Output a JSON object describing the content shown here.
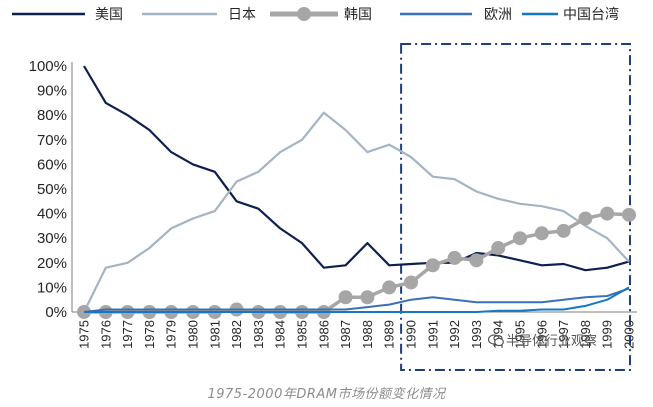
{
  "caption": "1975-2000年DRAM市场份额变化情况",
  "watermark": "半导体行业观察",
  "colors": {
    "usa": "#0d2050",
    "japan": "#a3b4c4",
    "korea": "#a6a6a6",
    "europe": "#3b6fb6",
    "taiwan": "#1677c4",
    "highlight_box": "#1f3f7a",
    "axis": "#7f7f7f",
    "text": "#262626"
  },
  "chart_data": {
    "type": "line",
    "x": [
      "1975",
      "1976",
      "1977",
      "1978",
      "1979",
      "1980",
      "1981",
      "1982",
      "1983",
      "1984",
      "1985",
      "1986",
      "1987",
      "1988",
      "1989",
      "1990",
      "1991",
      "1992",
      "1993",
      "1994",
      "1995",
      "1996",
      "1997",
      "1998",
      "1999",
      "2000"
    ],
    "ylim": [
      0,
      100
    ],
    "yticks": [
      "0%",
      "10%",
      "20%",
      "30%",
      "40%",
      "50%",
      "60%",
      "70%",
      "80%",
      "90%",
      "100%"
    ],
    "legend_position": "top",
    "grid": false,
    "highlight_range": [
      "1990",
      "2000"
    ],
    "series": [
      {
        "name": "美国",
        "key": "usa",
        "values": [
          100,
          85,
          80,
          74,
          65,
          60,
          57,
          45,
          42,
          34,
          28,
          18,
          19,
          28,
          19,
          19.5,
          20,
          20,
          24,
          23,
          21,
          19,
          19.5,
          17,
          18,
          20.5
        ]
      },
      {
        "name": "日本",
        "key": "japan",
        "values": [
          0,
          18,
          20,
          26,
          34,
          38,
          41,
          53,
          57,
          65,
          70,
          81,
          74,
          65,
          68,
          63,
          55,
          54,
          49,
          46,
          44,
          43,
          41,
          35,
          30,
          20.5
        ]
      },
      {
        "name": "韩国",
        "key": "korea",
        "marker": "circle",
        "values": [
          0,
          0,
          0,
          0,
          0,
          0,
          0,
          1,
          0,
          0,
          0,
          0,
          6,
          6,
          10,
          12,
          19,
          22,
          21,
          26,
          30,
          32,
          33,
          38,
          40,
          39.5
        ]
      },
      {
        "name": "欧洲",
        "key": "europe",
        "values": [
          0,
          1,
          1,
          1,
          1,
          1,
          1,
          1,
          1,
          1,
          1,
          1,
          1,
          2,
          3,
          5,
          6,
          5,
          4,
          4,
          4,
          4,
          5,
          6,
          6.5,
          9.5
        ]
      },
      {
        "name": "中国台湾",
        "key": "taiwan",
        "values": [
          0,
          0,
          0,
          0,
          0,
          0,
          0,
          0,
          0,
          0,
          0,
          0,
          0,
          0,
          0,
          0,
          0,
          0,
          0,
          0.5,
          0.5,
          1,
          1,
          2.5,
          5,
          10
        ]
      }
    ]
  }
}
